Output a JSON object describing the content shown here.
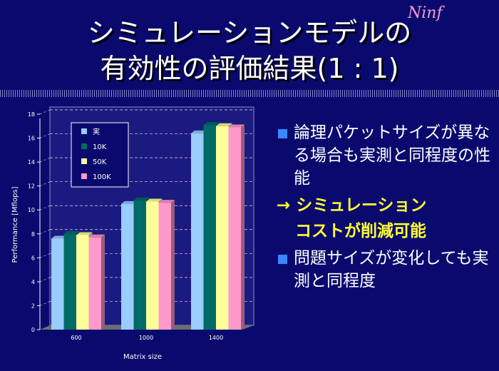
{
  "slide": {
    "title_line1": "シミュレーションモデルの",
    "title_line2": "有効性の評価結果(1 : 1)",
    "logo_text": "Ninf",
    "bullets": [
      "論理パケットサイズが異なる場合も実測と同程度の性能",
      "問題サイズが変化しても実測と同程度"
    ],
    "arrow_line1": "→ シミュレーション",
    "arrow_line2": "コストが削減可能",
    "bullet_color": "#3a86ff",
    "highlight_color": "#ffff33",
    "background_color": "#0a0a6e"
  },
  "chart_data": {
    "type": "bar",
    "xlabel": "Matrix size",
    "ylabel": "Performance [Mflops]",
    "categories": [
      "600",
      "1000",
      "1400"
    ],
    "ylim": [
      0,
      18
    ],
    "yticks": [
      "0",
      "2",
      "4",
      "6",
      "8",
      "10",
      "12",
      "14",
      "16",
      "18"
    ],
    "grid": true,
    "legend_position": "top-left",
    "series": [
      {
        "name": "実",
        "color": "#99ccff",
        "values": [
          7.6,
          10.5,
          16.4
        ]
      },
      {
        "name": "10K",
        "color": "#006b66",
        "values": [
          8.0,
          10.8,
          17.1
        ]
      },
      {
        "name": "50K",
        "color": "#ffff99",
        "values": [
          7.9,
          10.7,
          17.0
        ]
      },
      {
        "name": "100K",
        "color": "#ff99cc",
        "values": [
          7.7,
          10.6,
          16.9
        ]
      }
    ]
  }
}
